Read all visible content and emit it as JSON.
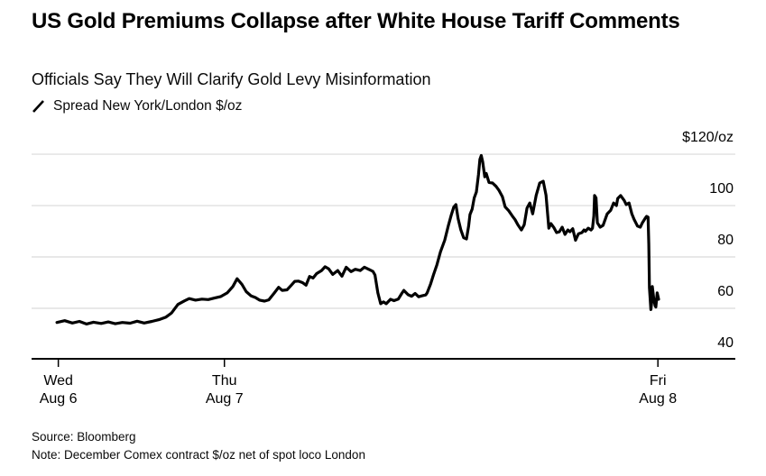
{
  "header": {
    "title": "US Gold Premiums Collapse after White House Tariff Comments",
    "subtitle": "Officials Say They Will Clarify Gold Levy Misinformation"
  },
  "legend": {
    "label": "Spread New York/London $/oz"
  },
  "footer": {
    "source": "Source: Bloomberg",
    "note": "Note: December Comex contract $/oz net of spot loco London"
  },
  "chart_data": {
    "type": "line",
    "title": "US Gold Premiums Collapse after White House Tariff Comments",
    "series_name": "Spread New York/London $/oz",
    "unit": "$/oz",
    "line_color": "#000000",
    "grid_color": "#d9d9d9",
    "axis_color": "#000000",
    "legend_position": "top-left",
    "y_axis": {
      "range": [
        40,
        130.9
      ],
      "ticks": [
        {
          "value": 120,
          "label": "$120/oz"
        },
        {
          "value": 100,
          "label": "100"
        },
        {
          "value": 80,
          "label": "80"
        },
        {
          "value": 60,
          "label": "60"
        },
        {
          "value": 40,
          "label": "40"
        }
      ]
    },
    "x_axis": {
      "ticks": [
        {
          "pos": 0.038,
          "day": "Wed",
          "date": "Aug 6"
        },
        {
          "pos": 0.274,
          "day": "Thu",
          "date": "Aug 7"
        },
        {
          "pos": 0.89,
          "day": "Fri",
          "date": "Aug 8"
        }
      ]
    },
    "points": [
      [
        0.036,
        54.5
      ],
      [
        0.047,
        55.2
      ],
      [
        0.058,
        54.3
      ],
      [
        0.068,
        54.9
      ],
      [
        0.078,
        53.9
      ],
      [
        0.088,
        54.6
      ],
      [
        0.099,
        54.1
      ],
      [
        0.109,
        54.7
      ],
      [
        0.119,
        54.0
      ],
      [
        0.129,
        54.5
      ],
      [
        0.14,
        54.2
      ],
      [
        0.15,
        55.0
      ],
      [
        0.16,
        54.3
      ],
      [
        0.171,
        54.9
      ],
      [
        0.181,
        55.6
      ],
      [
        0.191,
        56.6
      ],
      [
        0.199,
        58.2
      ],
      [
        0.208,
        61.5
      ],
      [
        0.217,
        62.9
      ],
      [
        0.224,
        63.8
      ],
      [
        0.233,
        63.2
      ],
      [
        0.242,
        63.6
      ],
      [
        0.251,
        63.4
      ],
      [
        0.26,
        64.0
      ],
      [
        0.269,
        64.6
      ],
      [
        0.278,
        66.0
      ],
      [
        0.286,
        68.5
      ],
      [
        0.292,
        71.5
      ],
      [
        0.299,
        69.3
      ],
      [
        0.305,
        66.5
      ],
      [
        0.312,
        64.8
      ],
      [
        0.318,
        64.2
      ],
      [
        0.324,
        63.2
      ],
      [
        0.331,
        62.8
      ],
      [
        0.337,
        63.3
      ],
      [
        0.345,
        66.0
      ],
      [
        0.351,
        68.2
      ],
      [
        0.356,
        67.0
      ],
      [
        0.363,
        67.2
      ],
      [
        0.369,
        69.0
      ],
      [
        0.374,
        70.5
      ],
      [
        0.379,
        70.6
      ],
      [
        0.385,
        70.0
      ],
      [
        0.39,
        69.0
      ],
      [
        0.395,
        72.4
      ],
      [
        0.4,
        71.8
      ],
      [
        0.405,
        73.5
      ],
      [
        0.412,
        74.7
      ],
      [
        0.417,
        76.2
      ],
      [
        0.422,
        75.4
      ],
      [
        0.428,
        73.2
      ],
      [
        0.435,
        74.7
      ],
      [
        0.441,
        72.5
      ],
      [
        0.447,
        76.0
      ],
      [
        0.454,
        74.3
      ],
      [
        0.46,
        75.2
      ],
      [
        0.467,
        74.7
      ],
      [
        0.473,
        76.0
      ],
      [
        0.479,
        75.2
      ],
      [
        0.485,
        74.4
      ],
      [
        0.488,
        73.0
      ],
      [
        0.492,
        66.0
      ],
      [
        0.496,
        61.8
      ],
      [
        0.5,
        62.5
      ],
      [
        0.504,
        61.8
      ],
      [
        0.51,
        63.5
      ],
      [
        0.515,
        63.0
      ],
      [
        0.521,
        63.6
      ],
      [
        0.526,
        65.8
      ],
      [
        0.529,
        67.0
      ],
      [
        0.535,
        65.3
      ],
      [
        0.54,
        64.7
      ],
      [
        0.545,
        65.8
      ],
      [
        0.55,
        64.5
      ],
      [
        0.555,
        64.9
      ],
      [
        0.56,
        65.2
      ],
      [
        0.562,
        66.0
      ],
      [
        0.567,
        69.5
      ],
      [
        0.571,
        73.0
      ],
      [
        0.576,
        77.0
      ],
      [
        0.581,
        82.0
      ],
      [
        0.587,
        86.5
      ],
      [
        0.592,
        92.0
      ],
      [
        0.596,
        96.0
      ],
      [
        0.6,
        99.5
      ],
      [
        0.603,
        100.4
      ],
      [
        0.606,
        95.0
      ],
      [
        0.61,
        90.5
      ],
      [
        0.614,
        87.5
      ],
      [
        0.618,
        87.0
      ],
      [
        0.621,
        92.0
      ],
      [
        0.623,
        96.5
      ],
      [
        0.626,
        98.6
      ],
      [
        0.629,
        103.0
      ],
      [
        0.632,
        105.3
      ],
      [
        0.635,
        112.0
      ],
      [
        0.637,
        118.0
      ],
      [
        0.639,
        119.5
      ],
      [
        0.641,
        117.0
      ],
      [
        0.644,
        111.2
      ],
      [
        0.646,
        112.5
      ],
      [
        0.65,
        109.0
      ],
      [
        0.655,
        108.8
      ],
      [
        0.66,
        107.5
      ],
      [
        0.664,
        106.0
      ],
      [
        0.669,
        103.5
      ],
      [
        0.673,
        99.5
      ],
      [
        0.678,
        98.0
      ],
      [
        0.683,
        96.0
      ],
      [
        0.687,
        94.5
      ],
      [
        0.691,
        92.5
      ],
      [
        0.696,
        90.5
      ],
      [
        0.7,
        92.5
      ],
      [
        0.704,
        99.0
      ],
      [
        0.708,
        101.0
      ],
      [
        0.712,
        96.8
      ],
      [
        0.717,
        104.0
      ],
      [
        0.722,
        108.8
      ],
      [
        0.727,
        109.5
      ],
      [
        0.731,
        104.0
      ],
      [
        0.735,
        91.2
      ],
      [
        0.738,
        93.0
      ],
      [
        0.742,
        91.5
      ],
      [
        0.746,
        89.5
      ],
      [
        0.75,
        89.8
      ],
      [
        0.754,
        91.6
      ],
      [
        0.758,
        88.8
      ],
      [
        0.762,
        90.5
      ],
      [
        0.765,
        89.8
      ],
      [
        0.769,
        91.0
      ],
      [
        0.773,
        86.5
      ],
      [
        0.777,
        89.0
      ],
      [
        0.782,
        89.5
      ],
      [
        0.785,
        90.5
      ],
      [
        0.787,
        90.0
      ],
      [
        0.791,
        91.2
      ],
      [
        0.795,
        90.5
      ],
      [
        0.797,
        91.2
      ],
      [
        0.799,
        96.0
      ],
      [
        0.8,
        103.9
      ],
      [
        0.802,
        103.0
      ],
      [
        0.804,
        93.3
      ],
      [
        0.808,
        91.6
      ],
      [
        0.812,
        92.3
      ],
      [
        0.818,
        96.8
      ],
      [
        0.823,
        98.2
      ],
      [
        0.827,
        101.0
      ],
      [
        0.831,
        100.0
      ],
      [
        0.833,
        102.8
      ],
      [
        0.837,
        103.9
      ],
      [
        0.842,
        102.0
      ],
      [
        0.845,
        100.4
      ],
      [
        0.849,
        101.0
      ],
      [
        0.853,
        96.8
      ],
      [
        0.856,
        94.7
      ],
      [
        0.861,
        92.0
      ],
      [
        0.865,
        91.6
      ],
      [
        0.868,
        93.3
      ],
      [
        0.872,
        95.1
      ],
      [
        0.874,
        95.8
      ],
      [
        0.876,
        95.5
      ],
      [
        0.877,
        85.0
      ],
      [
        0.878,
        68.0
      ],
      [
        0.88,
        59.5
      ],
      [
        0.881,
        62.0
      ],
      [
        0.882,
        68.5
      ],
      [
        0.884,
        64.0
      ],
      [
        0.886,
        61.0
      ],
      [
        0.887,
        60.5
      ],
      [
        0.889,
        66.0
      ],
      [
        0.891,
        63.5
      ]
    ]
  }
}
